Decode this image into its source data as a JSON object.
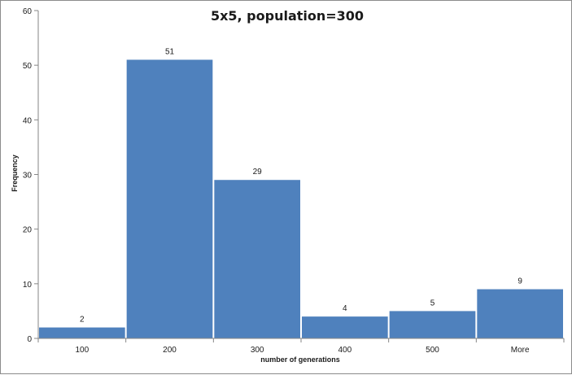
{
  "chart_data": {
    "type": "bar",
    "title": "5x5, population=300",
    "xlabel": "number of generations",
    "ylabel": "Frequency",
    "categories": [
      "100",
      "200",
      "300",
      "400",
      "500",
      "More"
    ],
    "values": [
      2,
      51,
      29,
      4,
      5,
      9
    ],
    "ylim": [
      0,
      60
    ],
    "yticks": [
      0,
      10,
      20,
      30,
      40,
      50,
      60
    ],
    "grid": false,
    "legend": "none",
    "bar_color": "#4f81bd",
    "data_labels": true
  }
}
